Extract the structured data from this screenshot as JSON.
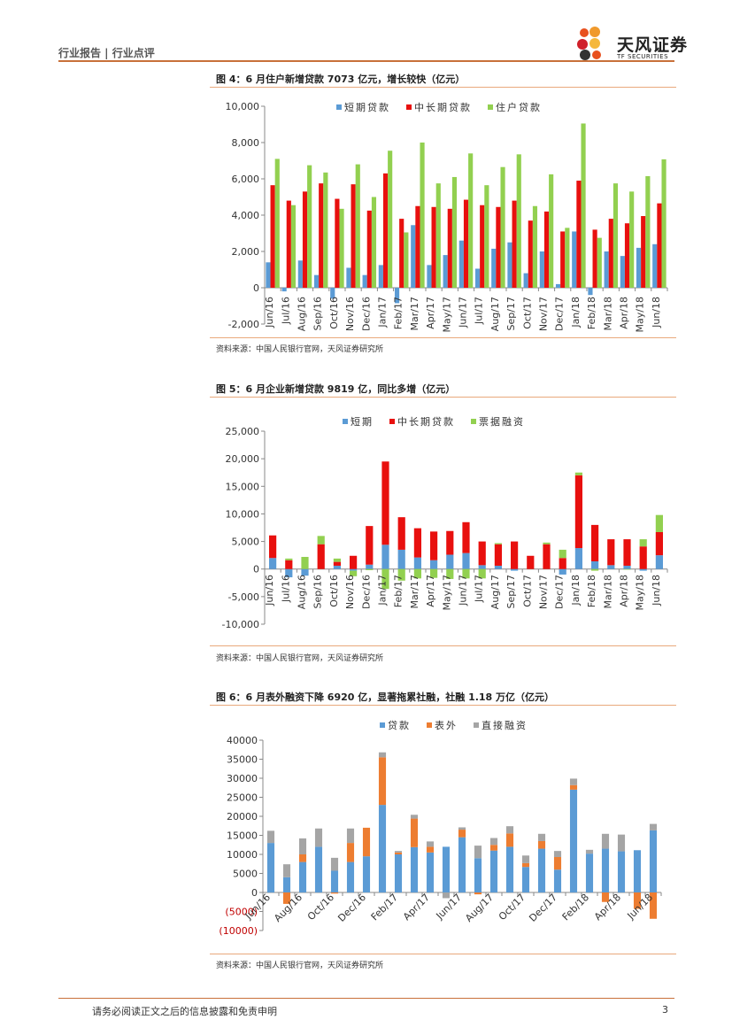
{
  "header": {
    "left": "行业报告 | 行业点评",
    "logo_cn": "天风证券",
    "logo_en": "TF SECURITIES"
  },
  "colors": {
    "blue": "#5b9bd5",
    "red": "#e8100e",
    "green": "#92d050",
    "orange": "#ed7d31",
    "gray": "#a5a5a5",
    "rule": "#e9a97c"
  },
  "fig4": {
    "title": "图 4：6 月住户新增贷款 7073 亿元，增长较快（亿元）",
    "source": "资料来源：中国人民银行官网，天风证券研究所"
  },
  "fig5": {
    "title": "图 5：6 月企业新增贷款 9819 亿，同比多增（亿元）",
    "source": "资料来源：中国人民银行官网，天风证券研究所"
  },
  "fig6": {
    "title": "图 6：6 月表外融资下降 6920 亿，显著拖累社融，社融 1.18 万亿（亿元）",
    "source": "资料来源：中国人民银行官网，天风证券研究所"
  },
  "footer": {
    "text": "请务必阅读正文之后的信息披露和免责申明",
    "page": "3"
  },
  "chart_data": [
    {
      "type": "bar",
      "title": "图 4：6 月住户新增贷款 7073 亿元，增长较快（亿元）",
      "categories": [
        "Jun/16",
        "Jul/16",
        "Aug/16",
        "Sep/16",
        "Oct/16",
        "Nov/16",
        "Dec/16",
        "Jan/17",
        "Feb/17",
        "Mar/17",
        "Apr/17",
        "May/17",
        "Jun/17",
        "Jul/17",
        "Aug/17",
        "Sep/17",
        "Oct/17",
        "Nov/17",
        "Dec/17",
        "Jan/18",
        "Feb/18",
        "Mar/18",
        "Apr/18",
        "May/18",
        "Jun/18"
      ],
      "series": [
        {
          "name": "短期贷款",
          "values": [
            1400,
            -200,
            1500,
            700,
            -600,
            1100,
            700,
            1250,
            -850,
            3450,
            1250,
            1800,
            2600,
            1050,
            2150,
            2500,
            800,
            2000,
            200,
            3100,
            -400,
            2000,
            1750,
            2200,
            2400
          ]
        },
        {
          "name": "中长期贷款",
          "values": [
            5650,
            4800,
            5300,
            5750,
            4900,
            5700,
            4250,
            6300,
            3800,
            4500,
            4450,
            4350,
            4850,
            4550,
            4450,
            4800,
            3700,
            4200,
            3100,
            5900,
            3200,
            3800,
            3550,
            3950,
            4650
          ]
        },
        {
          "name": "住户贷款",
          "values": [
            7100,
            4550,
            6750,
            6350,
            4350,
            6800,
            5000,
            7550,
            3050,
            8000,
            5750,
            6100,
            7400,
            5650,
            6650,
            7350,
            4500,
            6250,
            3300,
            9050,
            2750,
            5750,
            5300,
            6150,
            7073
          ]
        }
      ],
      "ylim": [
        -2000,
        10000
      ],
      "yticks": [
        "-2,000",
        "0",
        "2,000",
        "4,000",
        "6,000",
        "8,000",
        "10,000"
      ]
    },
    {
      "type": "bar",
      "stacked": true,
      "title": "图 5：6 月企业新增贷款 9819 亿，同比多增（亿元）",
      "categories": [
        "Jun/16",
        "Jul/16",
        "Aug/16",
        "Sep/16",
        "Oct/16",
        "Nov/16",
        "Dec/16",
        "Jan/17",
        "Feb/17",
        "Mar/17",
        "Apr/17",
        "May/17",
        "Jun/17",
        "Jul/17",
        "Aug/17",
        "Sep/17",
        "Oct/17",
        "Nov/17",
        "Dec/17",
        "Jan/18",
        "Feb/18",
        "Mar/18",
        "Apr/18",
        "May/18",
        "Jun/18"
      ],
      "series": [
        {
          "name": "短期",
          "values": [
            2000,
            -1500,
            -1200,
            0,
            600,
            -300,
            800,
            4400,
            3500,
            2100,
            1600,
            2600,
            2900,
            700,
            600,
            -300,
            0,
            0,
            -1000,
            3800,
            1400,
            700,
            600,
            -300,
            2500
          ]
        },
        {
          "name": "中长期贷款",
          "values": [
            4100,
            1600,
            0,
            4500,
            700,
            2400,
            7000,
            15100,
            5900,
            5300,
            5200,
            4300,
            5600,
            4300,
            3900,
            5000,
            2400,
            4500,
            2000,
            13200,
            6600,
            4700,
            4800,
            4100,
            4200
          ]
        },
        {
          "name": "票据融资",
          "values": [
            0,
            300,
            2200,
            1500,
            600,
            -1000,
            -200,
            -3600,
            -2100,
            -1700,
            -1600,
            -1800,
            -1700,
            -1700,
            200,
            0,
            0,
            300,
            1500,
            500,
            -300,
            0,
            -100,
            1300,
            3100
          ]
        }
      ],
      "ylim": [
        -10000,
        25000
      ],
      "yticks": [
        "-10,000",
        "-5,000",
        "0",
        "5,000",
        "10,000",
        "15,000",
        "20,000",
        "25,000"
      ]
    },
    {
      "type": "bar",
      "stacked": true,
      "title": "图 6：6 月表外融资下降 6920 亿，显著拖累社融，社融 1.18 万亿（亿元）",
      "categories": [
        "Jun/16",
        "Jul/16",
        "Aug/16",
        "Sep/16",
        "Oct/16",
        "Nov/16",
        "Dec/16",
        "Jan/17",
        "Feb/17",
        "Mar/17",
        "Apr/17",
        "May/17",
        "Jun/17",
        "Jul/17",
        "Aug/17",
        "Sep/17",
        "Oct/17",
        "Nov/17",
        "Dec/17",
        "Jan/18",
        "Feb/18",
        "Mar/18",
        "Apr/18",
        "May/18",
        "Jun/18"
      ],
      "xticks": [
        "Jun/16",
        "Aug/16",
        "Oct/16",
        "Dec/16",
        "Feb/17",
        "Apr/17",
        "Jun/17",
        "Aug/17",
        "Oct/17",
        "Dec/17",
        "Feb/18",
        "Apr/18",
        "Jun/18"
      ],
      "series": [
        {
          "name": "贷款",
          "values": [
            13000,
            4000,
            8000,
            12000,
            5700,
            8000,
            9500,
            23000,
            10000,
            11900,
            10500,
            12000,
            14500,
            9000,
            11000,
            12000,
            6700,
            11500,
            6000,
            27000,
            10200,
            11500,
            10800,
            11100,
            16300
          ]
        },
        {
          "name": "表外",
          "values": [
            0,
            -3000,
            2000,
            0,
            -300,
            5000,
            7500,
            12500,
            500,
            7500,
            1500,
            0,
            2000,
            -500,
            1500,
            3500,
            1000,
            2000,
            3300,
            1200,
            0,
            -2500,
            0,
            -4300,
            -6920
          ]
        },
        {
          "name": "直接融资",
          "values": [
            3200,
            3400,
            4200,
            4800,
            3400,
            3800,
            -100,
            1300,
            400,
            1000,
            1400,
            -1500,
            600,
            3300,
            1800,
            1900,
            2000,
            1900,
            1600,
            1700,
            1000,
            3900,
            4400,
            0,
            1700
          ]
        }
      ],
      "ylim": [
        -10000,
        40000
      ],
      "yticks": [
        "(10000)",
        "(5000)",
        "0",
        "5000",
        "10000",
        "15000",
        "20000",
        "25000",
        "30000",
        "35000",
        "40000"
      ]
    }
  ]
}
